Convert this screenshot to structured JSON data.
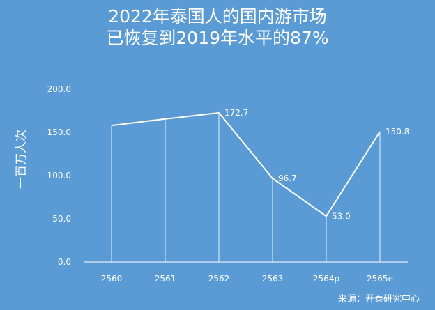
{
  "title_lines": [
    "2022年泰国人的国内游市场",
    "已恢复到2019年水平的87%"
  ],
  "source": "来源：开泰研究中心",
  "colors": {
    "background": "#5b9bd5",
    "line": "#ffffff",
    "text": "#ffffff"
  },
  "chart_data": {
    "type": "line",
    "title": "2022年泰国人的国内游市场 已恢复到2019年水平的87%",
    "xlabel": "",
    "ylabel": "一百万人次",
    "categories": [
      "2560",
      "2561",
      "2562",
      "2563",
      "2564p",
      "2565e"
    ],
    "series": [
      {
        "values": [
          158.0,
          165.5,
          172.7,
          96.7,
          53.0,
          150.8
        ]
      }
    ],
    "data_labels": [
      "",
      "",
      "172.7",
      "96.7",
      "53.0",
      "150.8"
    ],
    "y_ticks": [
      "0.0",
      "50.0",
      "100.0",
      "150.0",
      "200.0"
    ],
    "ylim": [
      0,
      200
    ],
    "drop_lines": true,
    "grid": false
  }
}
